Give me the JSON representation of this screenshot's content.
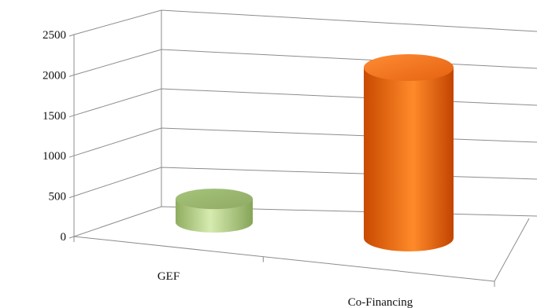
{
  "chart_data": {
    "type": "bar",
    "style": "3d-cylinder",
    "categories": [
      "GEF",
      "Co-Financing"
    ],
    "values": [
      210,
      2000
    ],
    "ylim": [
      0,
      2500
    ],
    "yticks": [
      0,
      500,
      1000,
      1500,
      2000,
      2500
    ],
    "grid": true,
    "legend": "none",
    "colors": [
      "#b8d48c",
      "#f06a0a"
    ]
  }
}
